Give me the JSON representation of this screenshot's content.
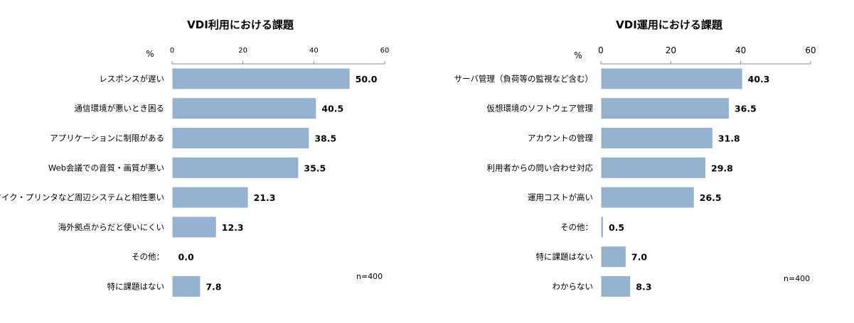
{
  "chart_data": [
    {
      "type": "bar",
      "orientation": "horizontal",
      "title": "VDI利用における課題",
      "unit_label": "%",
      "note": "n=400",
      "xlim": [
        0,
        60
      ],
      "ticks": [
        0,
        20,
        40,
        60
      ],
      "bar_color": "#95b3d0",
      "categories": [
        "レスポンスが遅い",
        "通信環境が悪いとき困る",
        "アプリケーションに制限がある",
        "Web会議での音質・画質が悪い",
        "マイク・プリンタなど周辺システムと相性悪い",
        "海外拠点からだと使いにくい",
        "その他：",
        "特に課題はない"
      ],
      "values": [
        50.0,
        40.5,
        38.5,
        35.5,
        21.3,
        12.3,
        0.0,
        7.8
      ],
      "value_labels": [
        "50.0",
        "40.5",
        "38.5",
        "35.5",
        "21.3",
        "12.3",
        "0.0",
        "7.8"
      ],
      "grid": false
    },
    {
      "type": "bar",
      "orientation": "horizontal",
      "title": "VDI運用における課題",
      "unit_label": "%",
      "note": "n=400",
      "xlim": [
        0,
        60
      ],
      "ticks": [
        0,
        20,
        40,
        60
      ],
      "bar_color": "#95b3d0",
      "categories": [
        "サーバ管理（負荷等の監視など含む）",
        "仮想環境のソフトウェア管理",
        "アカウントの管理",
        "利用者からの問い合わせ対応",
        "運用コストが高い",
        "その他：",
        "特に課題はない",
        "わからない"
      ],
      "values": [
        40.3,
        36.5,
        31.8,
        29.8,
        26.5,
        0.5,
        7.0,
        8.3
      ],
      "value_labels": [
        "40.3",
        "36.5",
        "31.8",
        "29.8",
        "26.5",
        "0.5",
        "7.0",
        "8.3"
      ],
      "grid": false
    }
  ]
}
